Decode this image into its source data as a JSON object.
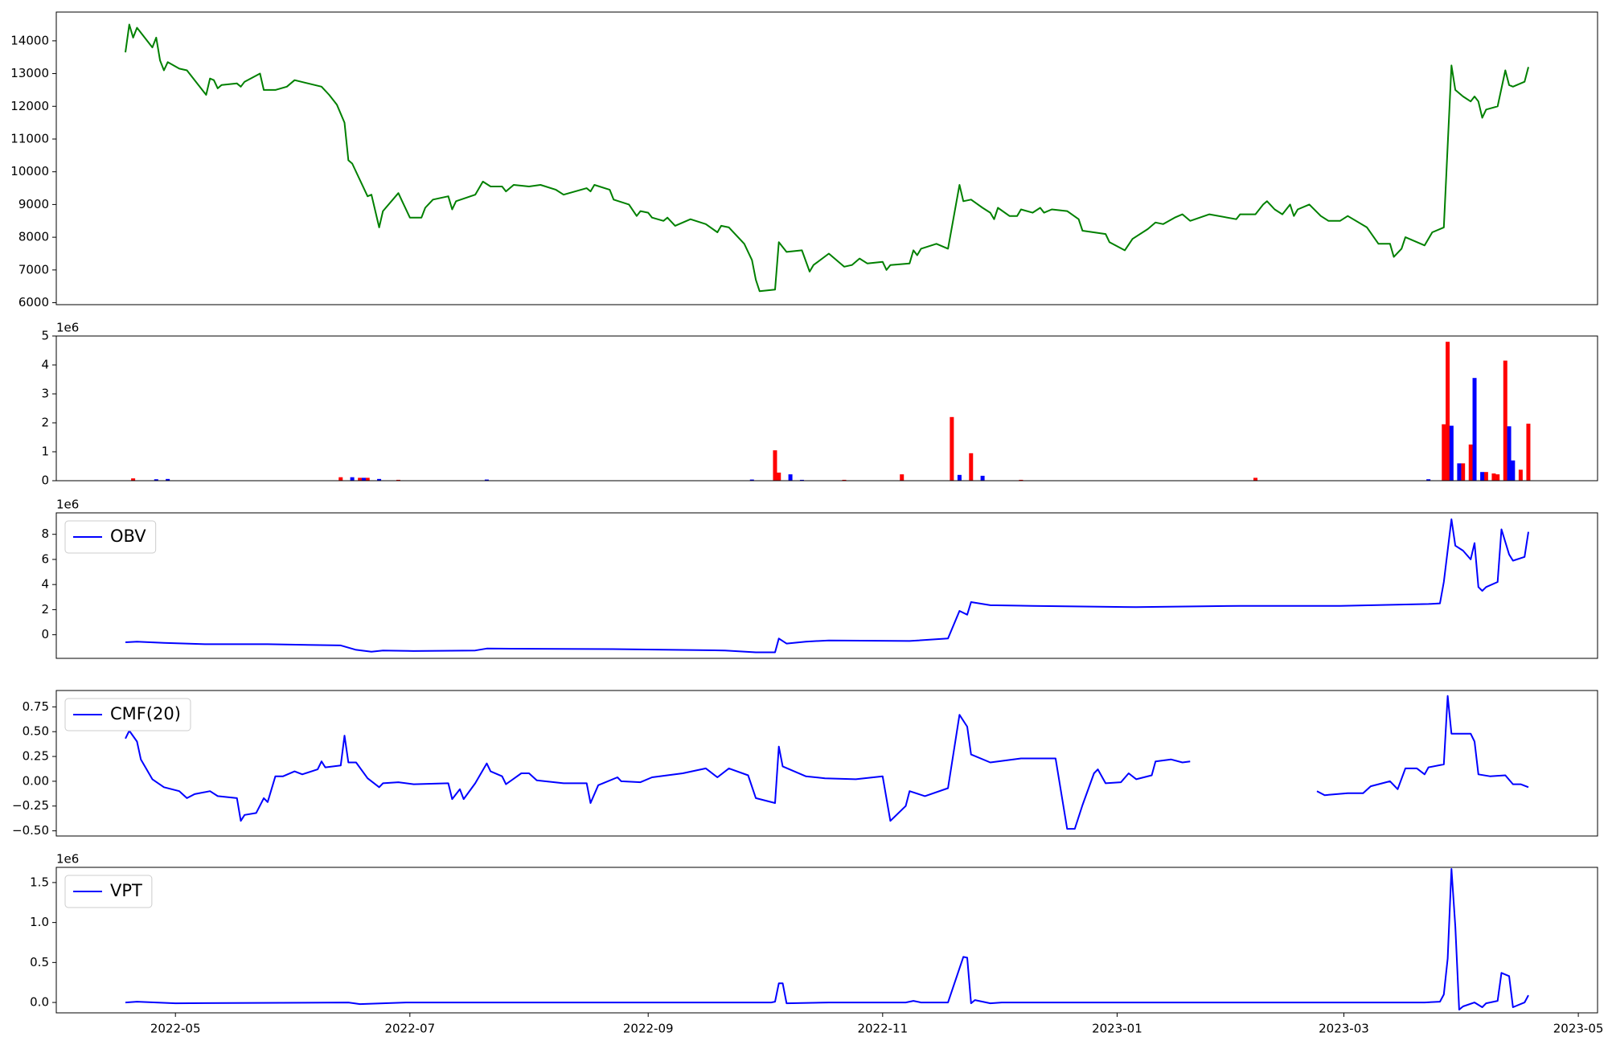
{
  "chart_data": [
    {
      "type": "line",
      "xlim": [
        -1,
        400
      ],
      "ylim": [
        5940,
        14880
      ],
      "yticks": [
        6000,
        7000,
        8000,
        9000,
        10000,
        11000,
        12000,
        13000,
        14000
      ],
      "series": [
        {
          "color": "green",
          "x": [
            17,
            18,
            19,
            20,
            24,
            25,
            26,
            27,
            28,
            31,
            33,
            38,
            39,
            40,
            41,
            42,
            46,
            47,
            48,
            52,
            53,
            56,
            59,
            61,
            68,
            70,
            72,
            74,
            75,
            76,
            80,
            81,
            83,
            84,
            88,
            89,
            91,
            94,
            95,
            97,
            101,
            102,
            103,
            108,
            110,
            112,
            115,
            116,
            118,
            122,
            125,
            129,
            131,
            137,
            138,
            139,
            143,
            144,
            148,
            150,
            151,
            153,
            154,
            157,
            158,
            160,
            164,
            168,
            171,
            172,
            174,
            178,
            180,
            181,
            182,
            186,
            187,
            189,
            193,
            195,
            196,
            200,
            204,
            206,
            208,
            210,
            214,
            215,
            216,
            221,
            222,
            223,
            224,
            228,
            231,
            234,
            235,
            237,
            240,
            242,
            243,
            244,
            247,
            249,
            250,
            253,
            255,
            256,
            258,
            262,
            265,
            266,
            272,
            273,
            277,
            279,
            283,
            285,
            287,
            290,
            292,
            294,
            299,
            306,
            307,
            311,
            313,
            314,
            316,
            318,
            320,
            321,
            322,
            325,
            328,
            330,
            333,
            335,
            340,
            343,
            346,
            347,
            349,
            350,
            355,
            357,
            360,
            362,
            363,
            365,
            367,
            368,
            369,
            370,
            371,
            374,
            376,
            377,
            378,
            381,
            382
          ],
          "values": [
            13650,
            14500,
            14100,
            14400,
            13800,
            14100,
            13400,
            13100,
            13350,
            13150,
            13100,
            12350,
            12850,
            12800,
            12550,
            12650,
            12700,
            12600,
            12750,
            13000,
            12500,
            12500,
            12600,
            12800,
            12600,
            12350,
            12050,
            11500,
            10350,
            10250,
            9250,
            9300,
            8300,
            8800,
            9350,
            9100,
            8600,
            8600,
            8900,
            9150,
            9250,
            8850,
            9100,
            9300,
            9700,
            9550,
            9550,
            9400,
            9600,
            9550,
            9600,
            9450,
            9300,
            9500,
            9400,
            9600,
            9450,
            9150,
            9000,
            8650,
            8800,
            8750,
            8600,
            8500,
            8600,
            8350,
            8550,
            8400,
            8150,
            8350,
            8300,
            7800,
            7300,
            6700,
            6350,
            6400,
            7850,
            7550,
            7600,
            6950,
            7150,
            7500,
            7100,
            7150,
            7350,
            7200,
            7250,
            7000,
            7150,
            7200,
            7600,
            7450,
            7650,
            7800,
            7650,
            9600,
            9100,
            9150,
            8900,
            8750,
            8550,
            8900,
            8650,
            8650,
            8850,
            8750,
            8900,
            8750,
            8850,
            8800,
            8550,
            8200,
            8100,
            7850,
            7600,
            7950,
            8250,
            8450,
            8400,
            8600,
            8700,
            8500,
            8700,
            8550,
            8700,
            8700,
            9000,
            9100,
            8850,
            8700,
            9000,
            8650,
            8850,
            9000,
            8650,
            8500,
            8500,
            8650,
            8300,
            7800,
            7800,
            7400,
            7650,
            8000,
            7750,
            8150,
            8300,
            13250,
            12500,
            12300,
            12150,
            12300,
            12150,
            11650,
            11900,
            12000,
            13100,
            12650,
            12600,
            12750,
            13200
          ]
        }
      ]
    },
    {
      "type": "bar",
      "xlim": [
        -1,
        400
      ],
      "ylim": [
        0,
        5
      ],
      "yticks": [
        0,
        1,
        2,
        3,
        4,
        5
      ],
      "offset_label": "1e6",
      "series": [
        {
          "color": "red",
          "x": [
            19,
            73,
            78,
            80,
            88,
            186,
            187,
            204,
            219,
            232,
            237,
            250,
            311,
            360,
            361,
            365,
            367,
            371,
            373,
            374,
            376,
            380,
            382
          ],
          "values": [
            0.08,
            0.12,
            0.1,
            0.1,
            0.03,
            1.05,
            0.28,
            0.03,
            0.22,
            2.2,
            0.95,
            0.03,
            0.1,
            1.95,
            4.8,
            0.6,
            1.25,
            0.3,
            0.25,
            0.22,
            4.15,
            0.38,
            1.97
          ]
        },
        {
          "color": "blue",
          "x": [
            25,
            28,
            76,
            79,
            83,
            111,
            180,
            190,
            193,
            234,
            240,
            356,
            362,
            364,
            368,
            370,
            377,
            378
          ],
          "values": [
            0.05,
            0.06,
            0.12,
            0.1,
            0.06,
            0.04,
            0.04,
            0.22,
            0.03,
            0.2,
            0.17,
            0.05,
            1.9,
            0.6,
            3.55,
            0.3,
            1.88,
            0.7
          ]
        }
      ]
    },
    {
      "type": "line",
      "xlim": [
        -1,
        400
      ],
      "ylim": [
        -1.88,
        9.71
      ],
      "yticks": [
        0,
        2,
        4,
        6,
        8
      ],
      "offset_label": "1e6",
      "legend": "upper left",
      "series": [
        {
          "name": "OBV",
          "color": "blue",
          "x": [
            17,
            20,
            27,
            38,
            54,
            73,
            77,
            81,
            84,
            92,
            108,
            111,
            146,
            173,
            181,
            186,
            187,
            189,
            194,
            200,
            221,
            231,
            234,
            236,
            237,
            242,
            253,
            280,
            307,
            333,
            356,
            359,
            360,
            362,
            363,
            365,
            367,
            368,
            369,
            370,
            371,
            374,
            375,
            377,
            378,
            381,
            382
          ],
          "values": [
            -0.6,
            -0.55,
            -0.65,
            -0.75,
            -0.75,
            -0.85,
            -1.2,
            -1.35,
            -1.25,
            -1.3,
            -1.25,
            -1.1,
            -1.15,
            -1.25,
            -1.4,
            -1.4,
            -0.3,
            -0.7,
            -0.55,
            -0.45,
            -0.5,
            -0.3,
            1.9,
            1.6,
            2.6,
            2.35,
            2.3,
            2.2,
            2.3,
            2.3,
            2.45,
            2.5,
            4.2,
            9.2,
            7.1,
            6.7,
            6.0,
            7.3,
            3.8,
            3.5,
            3.8,
            4.2,
            8.4,
            6.4,
            5.9,
            6.2,
            8.2
          ]
        }
      ]
    },
    {
      "type": "line",
      "xlim": [
        -1,
        400
      ],
      "ylim": [
        -0.552,
        0.915
      ],
      "legend": "upper left",
      "yticks": [
        {
          "value": -0.5,
          "label": "−0.50"
        },
        {
          "value": -0.25,
          "label": "−0.25"
        },
        {
          "value": 0,
          "label": "0.00"
        },
        {
          "value": 0.25,
          "label": "0.25"
        },
        {
          "value": 0.5,
          "label": "0.50"
        },
        {
          "value": 0.75,
          "label": "0.75"
        }
      ],
      "series": [
        {
          "name": "CMF(20)",
          "color": "blue",
          "x": [
            17,
            18,
            20,
            21,
            24,
            27,
            31,
            33,
            35,
            39,
            41,
            46,
            47,
            48,
            51,
            53,
            54,
            56,
            58,
            61,
            63,
            67,
            68,
            69,
            73,
            74,
            75,
            77,
            80,
            83,
            84,
            88,
            92,
            101,
            102,
            104,
            105,
            108,
            111,
            112,
            115,
            116,
            120,
            122,
            124,
            131,
            137,
            138,
            140,
            145,
            146,
            151,
            154,
            162,
            168,
            171,
            174,
            179,
            181,
            186,
            187,
            188,
            194,
            199,
            207,
            214,
            216,
            220,
            221,
            225,
            231,
            234,
            236,
            237,
            242,
            250,
            259,
            262,
            264,
            266,
            269,
            270,
            272,
            276,
            278,
            280,
            284,
            285,
            289,
            292,
            294,
            310,
            327,
            329,
            335,
            339,
            341,
            346,
            348,
            350,
            353,
            355,
            356,
            360,
            361,
            362,
            367,
            368,
            369,
            372,
            376,
            378,
            380,
            382
          ],
          "values": [
            0.43,
            0.51,
            0.4,
            0.22,
            0.02,
            -0.06,
            -0.1,
            -0.17,
            -0.13,
            -0.1,
            -0.15,
            -0.17,
            -0.4,
            -0.34,
            -0.32,
            -0.17,
            -0.21,
            0.05,
            0.05,
            0.1,
            0.07,
            0.12,
            0.2,
            0.14,
            0.16,
            0.46,
            0.19,
            0.19,
            0.03,
            -0.06,
            -0.02,
            -0.01,
            -0.03,
            -0.02,
            -0.18,
            -0.08,
            -0.18,
            -0.02,
            0.18,
            0.1,
            0.05,
            -0.03,
            0.08,
            0.08,
            0.01,
            -0.02,
            -0.02,
            -0.22,
            -0.04,
            0.04,
            0.0,
            -0.01,
            0.04,
            0.08,
            0.13,
            0.04,
            0.13,
            0.06,
            -0.17,
            -0.22,
            0.35,
            0.15,
            0.05,
            0.03,
            0.02,
            0.05,
            -0.4,
            -0.25,
            -0.1,
            -0.15,
            -0.07,
            0.67,
            0.55,
            0.27,
            0.19,
            0.23,
            0.23,
            -0.48,
            -0.48,
            -0.24,
            0.08,
            0.12,
            -0.02,
            -0.01,
            0.08,
            0.02,
            0.06,
            0.2,
            0.22,
            0.19,
            0.2,
            null,
            -0.1,
            -0.14,
            -0.12,
            -0.12,
            -0.05,
            0.0,
            -0.08,
            0.13,
            0.13,
            0.07,
            0.14,
            0.17,
            0.86,
            0.48,
            0.48,
            0.4,
            0.07,
            0.05,
            0.06,
            -0.03,
            -0.03,
            -0.06
          ]
        }
      ]
    },
    {
      "type": "line",
      "xlim": [
        -1,
        400
      ],
      "ylim": [
        -0.13,
        1.69
      ],
      "offset_label": "1e6",
      "legend": "upper left",
      "yticks": [
        {
          "value": 0,
          "label": "0.0"
        },
        {
          "value": 0.5,
          "label": "0.5"
        },
        {
          "value": 1,
          "label": "1.0"
        },
        {
          "value": 1.5,
          "label": "1.5"
        }
      ],
      "xticks": [
        {
          "value": 30,
          "label": "2022-05"
        },
        {
          "value": 91,
          "label": "2022-07"
        },
        {
          "value": 153,
          "label": "2022-09"
        },
        {
          "value": 214,
          "label": "2022-11"
        },
        {
          "value": 275,
          "label": "2023-01"
        },
        {
          "value": 334,
          "label": "2023-03"
        },
        {
          "value": 395,
          "label": "2023-05"
        }
      ],
      "series": [
        {
          "name": "VPT",
          "color": "blue",
          "x": [
            17,
            20,
            30,
            75,
            78,
            84,
            90,
            185,
            186,
            187,
            188,
            189,
            200,
            220,
            222,
            224,
            231,
            235,
            236,
            237,
            238,
            242,
            245,
            300,
            355,
            359,
            360,
            361,
            362,
            363,
            364,
            365,
            368,
            370,
            371,
            374,
            375,
            377,
            378,
            381,
            382
          ],
          "values": [
            0.0,
            0.01,
            -0.01,
            0.0,
            -0.02,
            -0.01,
            0.0,
            0.0,
            0.01,
            0.24,
            0.24,
            -0.01,
            0.0,
            0.0,
            0.02,
            0.0,
            0.0,
            0.57,
            0.56,
            -0.01,
            0.03,
            -0.01,
            0.0,
            0.0,
            0.0,
            0.01,
            0.1,
            0.55,
            1.67,
            0.95,
            -0.09,
            -0.05,
            0.0,
            -0.06,
            -0.01,
            0.02,
            0.37,
            0.33,
            -0.06,
            0.0,
            0.09
          ]
        }
      ]
    }
  ]
}
